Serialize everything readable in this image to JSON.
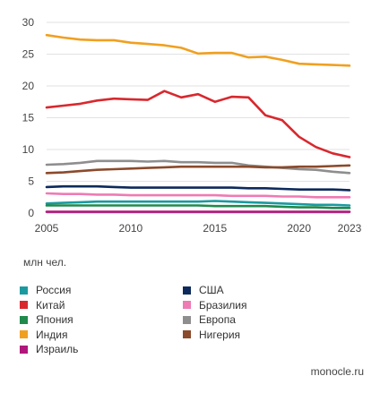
{
  "chart_data": {
    "type": "line",
    "x": [
      2005,
      2006,
      2007,
      2008,
      2009,
      2010,
      2011,
      2012,
      2013,
      2014,
      2015,
      2016,
      2017,
      2018,
      2019,
      2020,
      2021,
      2022,
      2023
    ],
    "xticks": [
      "2005",
      "2010",
      "2015",
      "2020",
      "2023"
    ],
    "yticks": [
      "0",
      "5",
      "10",
      "15",
      "20",
      "25",
      "30"
    ],
    "ylim": [
      0,
      30
    ],
    "xlim": [
      2005,
      2023
    ],
    "grid": true,
    "ylabel": "млн чел.",
    "legend_placement": "bottom",
    "series": [
      {
        "name": "Россия",
        "color": "#1a9aa0",
        "values": [
          1.5,
          1.6,
          1.7,
          1.8,
          1.8,
          1.8,
          1.8,
          1.8,
          1.8,
          1.8,
          1.9,
          1.8,
          1.7,
          1.6,
          1.5,
          1.4,
          1.3,
          1.3,
          1.2
        ]
      },
      {
        "name": "Китай",
        "color": "#d8282e",
        "values": [
          16.6,
          16.9,
          17.2,
          17.7,
          18.0,
          17.9,
          17.8,
          19.2,
          18.2,
          18.7,
          17.5,
          18.3,
          18.2,
          15.4,
          14.6,
          12.0,
          10.4,
          9.4,
          8.8
        ]
      },
      {
        "name": "Япония",
        "color": "#1f8a4c",
        "values": [
          1.2,
          1.2,
          1.2,
          1.2,
          1.2,
          1.2,
          1.2,
          1.2,
          1.2,
          1.2,
          1.1,
          1.1,
          1.1,
          1.1,
          1.0,
          0.9,
          0.9,
          0.8,
          0.8
        ]
      },
      {
        "name": "Индия",
        "color": "#f0a020",
        "values": [
          28.0,
          27.6,
          27.3,
          27.2,
          27.2,
          26.8,
          26.6,
          26.4,
          26.0,
          25.1,
          25.2,
          25.2,
          24.5,
          24.6,
          24.1,
          23.5,
          23.4,
          23.3,
          23.2
        ]
      },
      {
        "name": "Израиль",
        "color": "#b0177a",
        "values": [
          0.2,
          0.2,
          0.2,
          0.2,
          0.2,
          0.2,
          0.2,
          0.2,
          0.2,
          0.2,
          0.2,
          0.2,
          0.2,
          0.2,
          0.2,
          0.2,
          0.2,
          0.2,
          0.2
        ]
      },
      {
        "name": "США",
        "color": "#0d2a5c",
        "values": [
          4.1,
          4.2,
          4.2,
          4.2,
          4.1,
          4.0,
          4.0,
          4.0,
          4.0,
          4.0,
          4.0,
          4.0,
          3.9,
          3.9,
          3.8,
          3.7,
          3.7,
          3.7,
          3.6
        ]
      },
      {
        "name": "Бразилия",
        "color": "#ee7bb4",
        "values": [
          3.1,
          3.0,
          3.0,
          2.9,
          2.9,
          2.8,
          2.8,
          2.8,
          2.8,
          2.8,
          2.8,
          2.7,
          2.7,
          2.7,
          2.6,
          2.6,
          2.5,
          2.5,
          2.5
        ]
      },
      {
        "name": "Европа",
        "color": "#8e8e8e",
        "values": [
          7.6,
          7.7,
          7.9,
          8.2,
          8.2,
          8.2,
          8.1,
          8.2,
          8.0,
          8.0,
          7.9,
          7.9,
          7.5,
          7.3,
          7.1,
          6.9,
          6.8,
          6.5,
          6.3
        ]
      },
      {
        "name": "Нигерия",
        "color": "#8b4a2b",
        "values": [
          6.3,
          6.4,
          6.6,
          6.8,
          6.9,
          7.0,
          7.1,
          7.2,
          7.3,
          7.3,
          7.3,
          7.3,
          7.3,
          7.2,
          7.2,
          7.3,
          7.3,
          7.4,
          7.5
        ]
      }
    ]
  },
  "legend": {
    "left": [
      "Россия",
      "Китай",
      "Япония",
      "Индия",
      "Израиль"
    ],
    "right": [
      "США",
      "Бразилия",
      "Европа",
      "Нигерия"
    ]
  },
  "footer": {
    "unit_label": "млн чел.",
    "credit": "monocle.ru"
  }
}
